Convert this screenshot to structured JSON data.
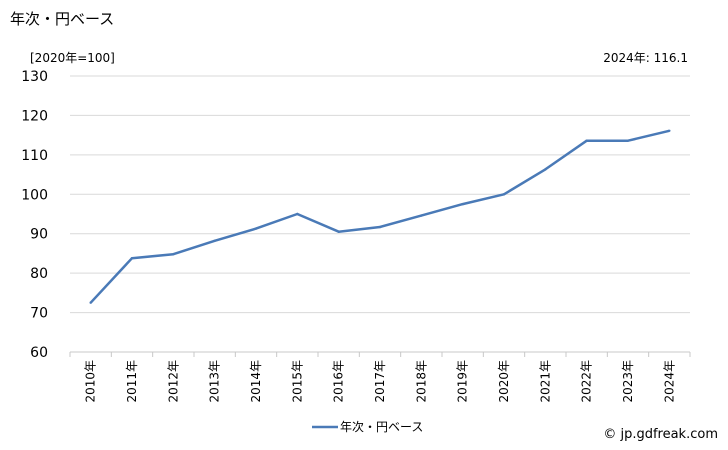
{
  "header": {
    "title": "年次・円ベース",
    "unit": "[2020年=100]",
    "latest": "2024年: 116.1"
  },
  "footer": {
    "credit": "© jp.gdfreak.com"
  },
  "colors": {
    "line": "#4a7ab7",
    "grid": "#d9d9d9",
    "axis": "#c8c8c8"
  },
  "chart_data": {
    "type": "line",
    "categories": [
      "2010年",
      "2011年",
      "2012年",
      "2013年",
      "2014年",
      "2015年",
      "2016年",
      "2017年",
      "2018年",
      "2019年",
      "2020年",
      "2021年",
      "2022年",
      "2023年",
      "2024年"
    ],
    "series": [
      {
        "name": "年次・円ベース",
        "values": [
          72.5,
          83.8,
          84.8,
          88.2,
          91.3,
          95.0,
          90.5,
          91.7,
          94.6,
          97.5,
          100.0,
          106.3,
          113.6,
          113.6,
          116.1
        ]
      }
    ],
    "ylim": [
      60,
      130
    ],
    "yticks": [
      60,
      70,
      80,
      90,
      100,
      110,
      120,
      130
    ],
    "grid": true,
    "legend": "bottom-center"
  }
}
